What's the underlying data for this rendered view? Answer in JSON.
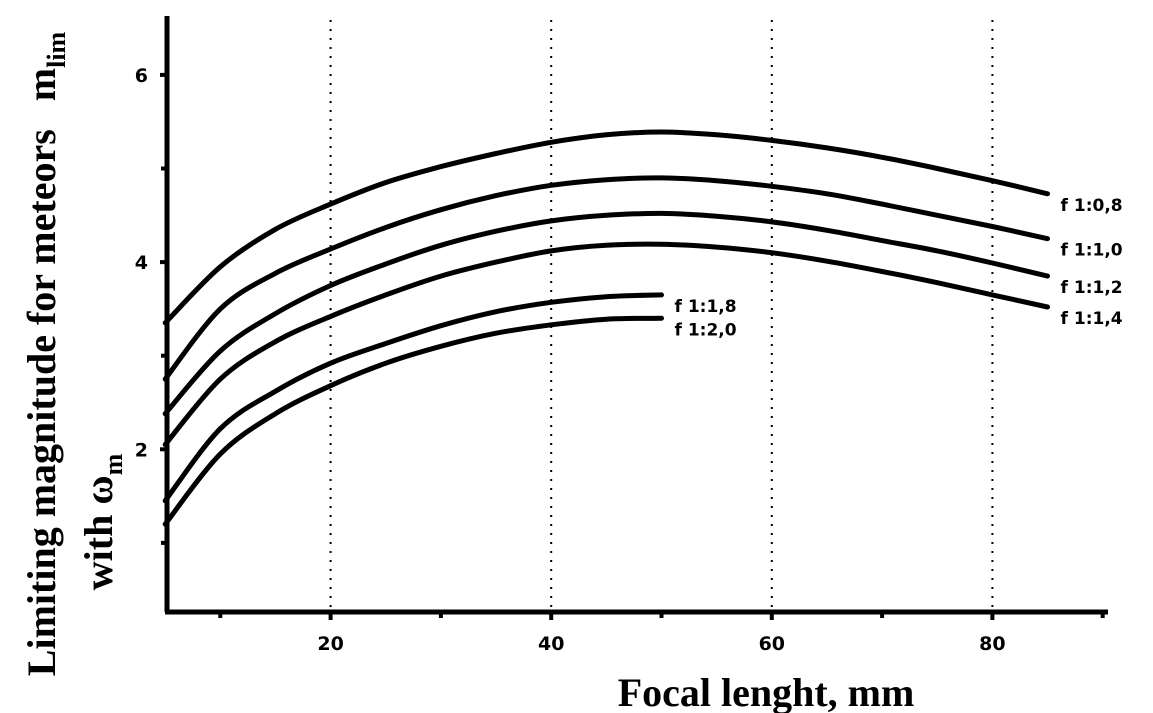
{
  "chart_data": {
    "type": "line",
    "xlabel": "Focal lenght, mm",
    "ylabel": {
      "line1_main": "Limiting magnitude for meteors",
      "line1_sym": "m",
      "line1_sub": "lim",
      "line2_main": "with ",
      "line2_sym": "ω",
      "line2_sub": "m"
    },
    "xlim": [
      5,
      90
    ],
    "ylim": [
      0,
      6.6
    ],
    "x_ticks": [
      20,
      40,
      60,
      80
    ],
    "x_tick_labels": [
      "20",
      "40",
      "60",
      "80"
    ],
    "x_minor_ticks": [
      10,
      30,
      50,
      70,
      90
    ],
    "y_ticks": [
      2,
      4,
      6
    ],
    "y_tick_labels": [
      "2",
      "4",
      "6"
    ],
    "y_minor_ticks": [
      1,
      3,
      5
    ],
    "grid": {
      "vertical_dotted_at": [
        20,
        40,
        60,
        80
      ]
    },
    "series": [
      {
        "name": "f 1:0,8",
        "x": [
          5,
          10,
          15,
          20,
          25,
          30,
          35,
          40,
          45,
          50,
          55,
          60,
          65,
          70,
          75,
          80,
          85
        ],
        "values": [
          3.35,
          3.95,
          4.35,
          4.62,
          4.85,
          5.02,
          5.16,
          5.28,
          5.36,
          5.39,
          5.36,
          5.3,
          5.22,
          5.12,
          5.0,
          4.87,
          4.73
        ]
      },
      {
        "name": "f 1:1,0",
        "x": [
          5,
          10,
          15,
          20,
          25,
          30,
          35,
          40,
          45,
          50,
          55,
          60,
          65,
          70,
          75,
          80,
          85
        ],
        "values": [
          2.75,
          3.5,
          3.88,
          4.14,
          4.37,
          4.56,
          4.71,
          4.82,
          4.88,
          4.9,
          4.87,
          4.81,
          4.73,
          4.62,
          4.5,
          4.38,
          4.25
        ]
      },
      {
        "name": "f 1:1,2",
        "x": [
          5,
          10,
          15,
          20,
          25,
          30,
          35,
          40,
          45,
          50,
          55,
          60,
          65,
          70,
          75,
          80,
          85
        ],
        "values": [
          2.38,
          3.05,
          3.45,
          3.75,
          3.98,
          4.18,
          4.33,
          4.44,
          4.5,
          4.52,
          4.49,
          4.43,
          4.34,
          4.23,
          4.12,
          3.99,
          3.85
        ]
      },
      {
        "name": "f 1:1,4",
        "x": [
          5,
          10,
          15,
          20,
          25,
          30,
          35,
          40,
          45,
          50,
          55,
          60,
          65,
          70,
          75,
          80,
          85
        ],
        "values": [
          2.05,
          2.75,
          3.15,
          3.42,
          3.65,
          3.85,
          4.0,
          4.12,
          4.18,
          4.19,
          4.16,
          4.1,
          4.01,
          3.9,
          3.78,
          3.65,
          3.52
        ]
      },
      {
        "name": "f 1:1,8",
        "x": [
          5,
          10,
          15,
          20,
          25,
          30,
          35,
          40,
          45,
          50
        ],
        "values": [
          1.45,
          2.22,
          2.62,
          2.92,
          3.13,
          3.32,
          3.47,
          3.57,
          3.63,
          3.65
        ]
      },
      {
        "name": "f 1:2,0",
        "x": [
          5,
          10,
          15,
          20,
          25,
          30,
          35,
          40,
          45,
          50
        ],
        "values": [
          1.2,
          1.95,
          2.38,
          2.68,
          2.92,
          3.1,
          3.24,
          3.33,
          3.39,
          3.4
        ]
      }
    ]
  }
}
